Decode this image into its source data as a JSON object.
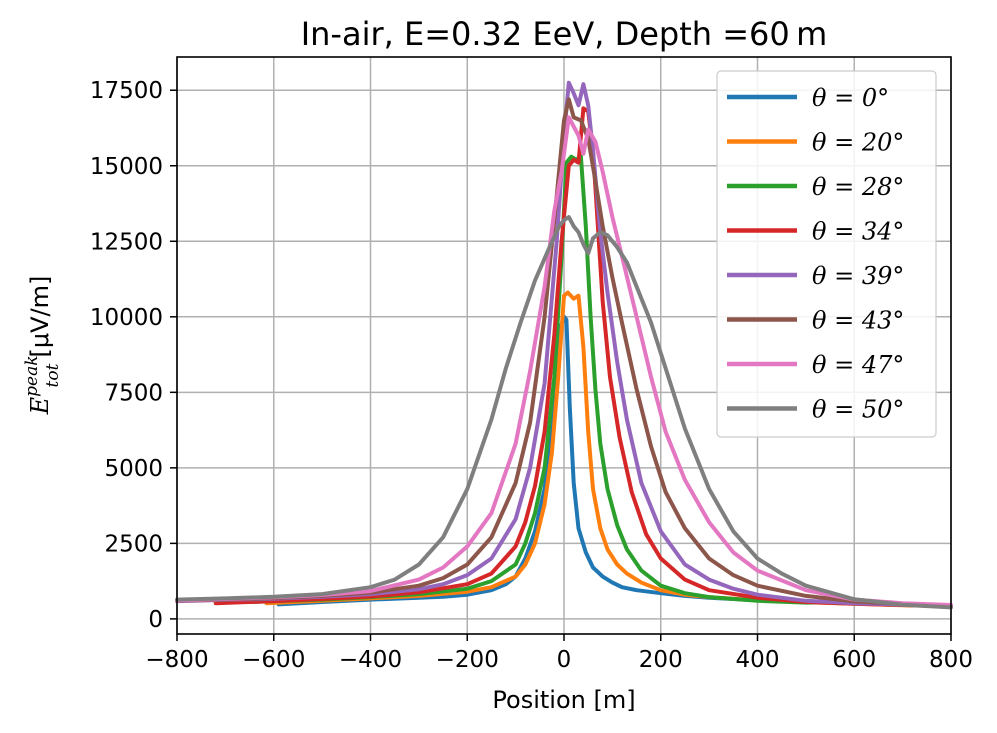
{
  "chart_data": {
    "type": "line",
    "title": "In-air, E=0.32 EeV, Depth =60 m",
    "xlabel": "Position [m]",
    "ylabel_main": "E",
    "ylabel_sup": "peak",
    "ylabel_sub": "tot",
    "ylabel_unit": "[μV/m]",
    "xlim": [
      -800,
      800
    ],
    "ylim": [
      -500,
      18600
    ],
    "xticks": [
      -800,
      -600,
      -400,
      -200,
      0,
      200,
      400,
      600,
      800
    ],
    "xtick_labels": [
      "−800",
      "−600",
      "−400",
      "−200",
      "0",
      "200",
      "400",
      "600",
      "800"
    ],
    "yticks": [
      0,
      2500,
      5000,
      7500,
      10000,
      12500,
      15000,
      17500
    ],
    "ytick_labels": [
      "0",
      "2500",
      "5000",
      "7500",
      "10000",
      "12500",
      "15000",
      "17500"
    ],
    "grid": true,
    "legend_position": "top-right",
    "series": [
      {
        "name": "θ = 0°",
        "color": "#1f77b4",
        "x": [
          -590,
          -500,
          -400,
          -300,
          -250,
          -200,
          -150,
          -120,
          -100,
          -80,
          -60,
          -40,
          -25,
          -15,
          -8,
          0,
          5,
          12,
          20,
          30,
          45,
          60,
          80,
          100,
          120,
          150,
          200,
          250,
          300,
          400,
          500,
          600,
          700,
          800
        ],
        "y": [
          480,
          560,
          640,
          700,
          730,
          800,
          950,
          1150,
          1400,
          2000,
          2900,
          4300,
          6300,
          8500,
          9600,
          10000,
          9900,
          7000,
          4500,
          3000,
          2200,
          1700,
          1400,
          1200,
          1050,
          950,
          850,
          760,
          700,
          620,
          560,
          510,
          460,
          420
        ]
      },
      {
        "name": "θ = 20°",
        "color": "#ff7f0e",
        "x": [
          -615,
          -500,
          -400,
          -300,
          -200,
          -150,
          -100,
          -80,
          -60,
          -40,
          -25,
          -12,
          0,
          8,
          20,
          30,
          40,
          50,
          60,
          75,
          90,
          110,
          130,
          160,
          200,
          250,
          300,
          400,
          500,
          600,
          700,
          800
        ],
        "y": [
          520,
          600,
          680,
          760,
          900,
          1050,
          1400,
          1800,
          2500,
          3800,
          5500,
          8000,
          10700,
          10800,
          10600,
          10700,
          9000,
          6200,
          4300,
          3000,
          2300,
          1800,
          1500,
          1200,
          950,
          800,
          720,
          620,
          550,
          500,
          450,
          420
        ]
      },
      {
        "name": "θ = 28°",
        "color": "#2ca02c",
        "x": [
          -650,
          -500,
          -400,
          -300,
          -200,
          -150,
          -100,
          -80,
          -60,
          -40,
          -20,
          -5,
          5,
          15,
          25,
          35,
          45,
          55,
          65,
          75,
          90,
          110,
          130,
          160,
          200,
          250,
          300,
          400,
          500,
          600,
          700,
          800
        ],
        "y": [
          560,
          640,
          720,
          820,
          1000,
          1250,
          1800,
          2500,
          3500,
          5000,
          8000,
          12000,
          15100,
          15300,
          15200,
          15300,
          13000,
          10000,
          7600,
          5800,
          4300,
          3100,
          2300,
          1600,
          1100,
          850,
          720,
          600,
          540,
          560,
          470,
          430
        ]
      },
      {
        "name": "θ = 34°",
        "color": "#d62728",
        "x": [
          -720,
          -600,
          -500,
          -400,
          -300,
          -200,
          -150,
          -100,
          -80,
          -60,
          -40,
          -20,
          -5,
          10,
          20,
          30,
          40,
          50,
          60,
          70,
          80,
          95,
          115,
          140,
          170,
          200,
          250,
          300,
          400,
          500,
          600,
          700,
          800
        ],
        "y": [
          520,
          590,
          660,
          740,
          880,
          1150,
          1500,
          2400,
          3200,
          4400,
          6200,
          9400,
          12500,
          15000,
          15200,
          15100,
          16900,
          16800,
          15500,
          13000,
          10500,
          8000,
          6000,
          4200,
          2800,
          2000,
          1300,
          950,
          700,
          560,
          500,
          460,
          420
        ]
      },
      {
        "name": "θ = 39°",
        "color": "#9467bd",
        "x": [
          -800,
          -700,
          -600,
          -500,
          -400,
          -300,
          -250,
          -200,
          -150,
          -100,
          -70,
          -40,
          -15,
          0,
          10,
          20,
          30,
          40,
          50,
          60,
          75,
          90,
          110,
          130,
          160,
          200,
          250,
          300,
          350,
          400,
          500,
          600,
          700,
          800
        ],
        "y": [
          590,
          630,
          670,
          730,
          820,
          980,
          1150,
          1450,
          2000,
          3300,
          5000,
          7800,
          12500,
          16000,
          17750,
          17400,
          17000,
          17700,
          17000,
          15500,
          12800,
          10800,
          8500,
          6600,
          4500,
          2900,
          1800,
          1300,
          1000,
          800,
          600,
          520,
          470,
          430
        ]
      },
      {
        "name": "θ = 43°",
        "color": "#8c564b",
        "x": [
          -800,
          -700,
          -600,
          -500,
          -400,
          -300,
          -250,
          -200,
          -150,
          -100,
          -70,
          -40,
          -15,
          0,
          10,
          20,
          35,
          50,
          65,
          80,
          100,
          120,
          150,
          180,
          210,
          250,
          300,
          350,
          400,
          500,
          600,
          700,
          800
        ],
        "y": [
          600,
          640,
          690,
          760,
          870,
          1100,
          1350,
          1800,
          2700,
          4500,
          6500,
          10000,
          14000,
          16500,
          17200,
          16600,
          16500,
          15900,
          14500,
          13000,
          11300,
          9800,
          7600,
          5700,
          4200,
          3000,
          2000,
          1450,
          1100,
          760,
          580,
          490,
          440
        ]
      },
      {
        "name": "θ = 47°",
        "color": "#e377c2",
        "x": [
          -800,
          -700,
          -600,
          -500,
          -400,
          -300,
          -250,
          -200,
          -150,
          -100,
          -70,
          -40,
          -20,
          -5,
          10,
          20,
          30,
          40,
          50,
          65,
          80,
          100,
          120,
          150,
          180,
          210,
          250,
          300,
          350,
          400,
          500,
          600,
          700,
          800
        ],
        "y": [
          610,
          660,
          710,
          790,
          920,
          1300,
          1700,
          2400,
          3500,
          5800,
          8200,
          11000,
          13500,
          14800,
          16600,
          16300,
          16000,
          15400,
          16200,
          15800,
          14800,
          13300,
          12000,
          10000,
          8000,
          6200,
          4600,
          3200,
          2200,
          1600,
          950,
          640,
          520,
          460
        ]
      },
      {
        "name": "θ = 50°",
        "color": "#7f7f7f",
        "x": [
          -800,
          -700,
          -600,
          -500,
          -400,
          -350,
          -300,
          -250,
          -200,
          -150,
          -120,
          -90,
          -60,
          -30,
          -10,
          0,
          10,
          20,
          30,
          40,
          50,
          60,
          75,
          90,
          110,
          130,
          150,
          180,
          210,
          250,
          300,
          350,
          400,
          450,
          500,
          600,
          700,
          800
        ],
        "y": [
          640,
          680,
          730,
          820,
          1050,
          1300,
          1800,
          2700,
          4300,
          6600,
          8300,
          9800,
          11200,
          12300,
          13000,
          13200,
          13300,
          13000,
          12800,
          12400,
          12100,
          12600,
          12800,
          12700,
          12300,
          11800,
          11000,
          9800,
          8300,
          6300,
          4300,
          2900,
          2000,
          1500,
          1100,
          650,
          470,
          380
        ]
      }
    ]
  }
}
